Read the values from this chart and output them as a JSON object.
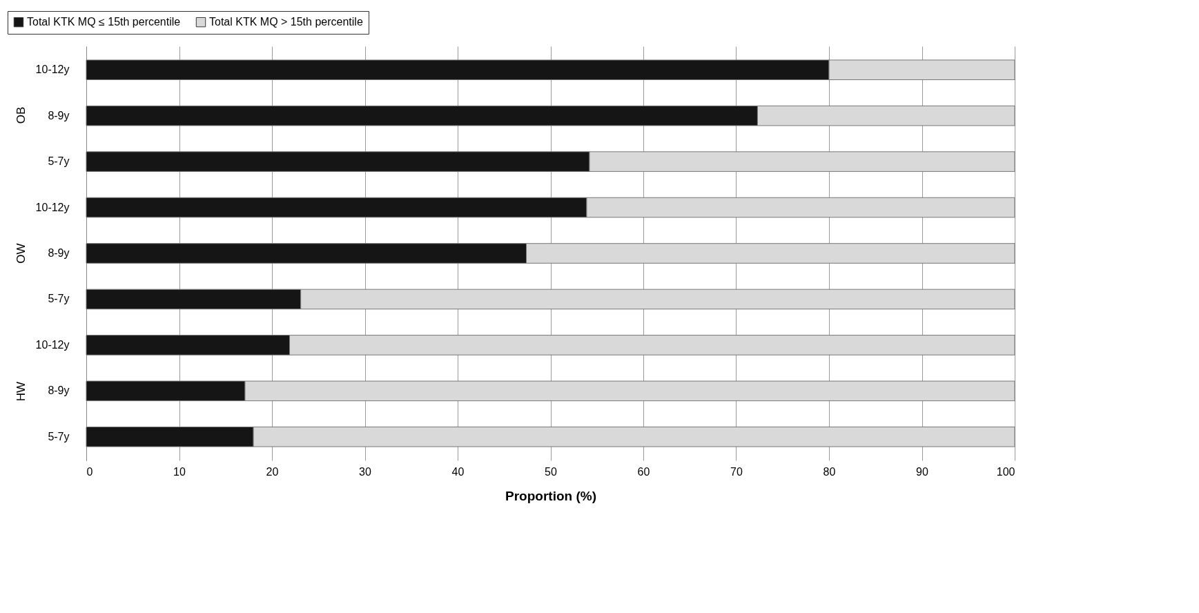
{
  "chart_data": {
    "type": "bar",
    "orientation": "horizontal",
    "stacked": true,
    "xlabel": "Proportion (%)",
    "categories": [
      "10-12y",
      "8-9y",
      "5-7y",
      "10-12y",
      "8-9y",
      "5-7y",
      "10-12y",
      "8-9y",
      "5-7y"
    ],
    "annotations": [
      "OB",
      "OW",
      "HW"
    ],
    "series": [
      {
        "name": "Total KTK MQ ≤ 15th percentile",
        "color": "#151515",
        "values": [
          80,
          72.3,
          54.2,
          53.9,
          47.4,
          23.1,
          21.9,
          17.1,
          18
        ]
      },
      {
        "name": "Total KTK MQ > 15th percentile",
        "color": "#d9d9d9",
        "values": [
          20,
          27.7,
          45.8,
          46.1,
          52.6,
          76.9,
          78.1,
          82.9,
          82
        ]
      }
    ],
    "xlim": [
      0,
      100
    ],
    "xticks": [
      0,
      10,
      20,
      30,
      40,
      50,
      60,
      70,
      80,
      90,
      100
    ],
    "grid": "x",
    "legend": "top"
  }
}
